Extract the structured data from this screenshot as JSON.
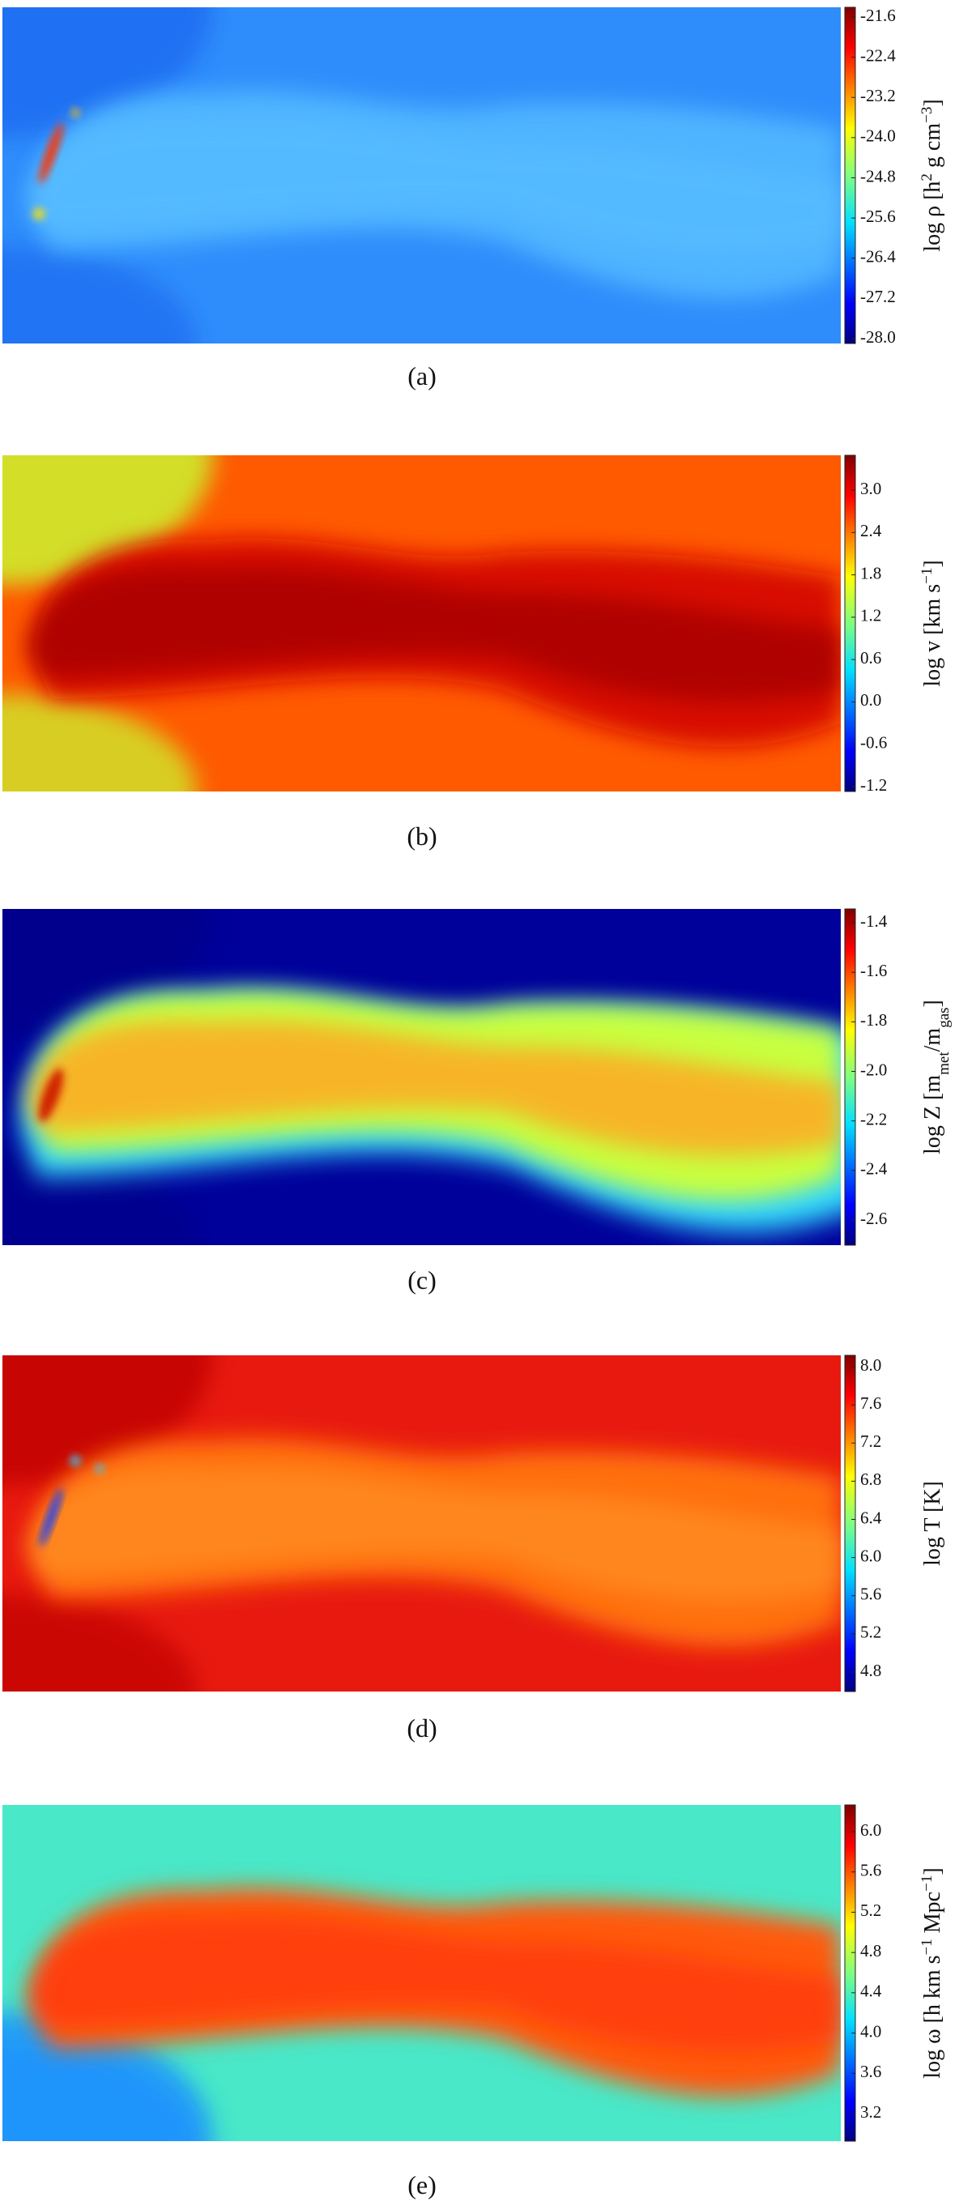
{
  "panels": [
    {
      "caption": "(a)",
      "colorbar": {
        "label": [
          {
            "text": "log ρ [h"
          },
          {
            "text": "2",
            "sup": true
          },
          {
            "text": " g cm"
          },
          {
            "text": "−3",
            "sup": true
          },
          {
            "text": "]"
          }
        ],
        "ticks": [
          "-21.6",
          "-22.4",
          "-23.2",
          "-24.0",
          "-24.8",
          "-25.6",
          "-26.4",
          "-27.2",
          "-28.0"
        ]
      }
    },
    {
      "caption": "(b)",
      "colorbar": {
        "label": [
          {
            "text": "log v [km s"
          },
          {
            "text": "−1",
            "sup": true
          },
          {
            "text": "]"
          }
        ],
        "ticks": [
          "3.0",
          "2.4",
          "1.8",
          "1.2",
          "0.6",
          "0.0",
          "-0.6",
          "-1.2"
        ]
      }
    },
    {
      "caption": "(c)",
      "colorbar": {
        "label": [
          {
            "text": "log Z [m"
          },
          {
            "text": "met",
            "sub": true
          },
          {
            "text": "/m"
          },
          {
            "text": "gas",
            "sub": true
          },
          {
            "text": "]"
          }
        ],
        "ticks": [
          "-1.4",
          "-1.6",
          "-1.8",
          "-2.0",
          "-2.2",
          "-2.4",
          "-2.6"
        ]
      }
    },
    {
      "caption": "(d)",
      "colorbar": {
        "label": [
          {
            "text": "log T [K]"
          }
        ],
        "ticks": [
          "8.0",
          "7.6",
          "7.2",
          "6.8",
          "6.4",
          "6.0",
          "5.6",
          "5.2",
          "4.8"
        ]
      }
    },
    {
      "caption": "(e)",
      "colorbar": {
        "label": [
          {
            "text": "log ω [h km s"
          },
          {
            "text": "−1",
            "sup": true
          },
          {
            "text": " Mpc"
          },
          {
            "text": "−1",
            "sup": true
          },
          {
            "text": "]"
          }
        ],
        "ticks": [
          "6.0",
          "5.6",
          "5.2",
          "4.8",
          "4.4",
          "4.0",
          "3.6",
          "3.2"
        ]
      }
    }
  ]
}
